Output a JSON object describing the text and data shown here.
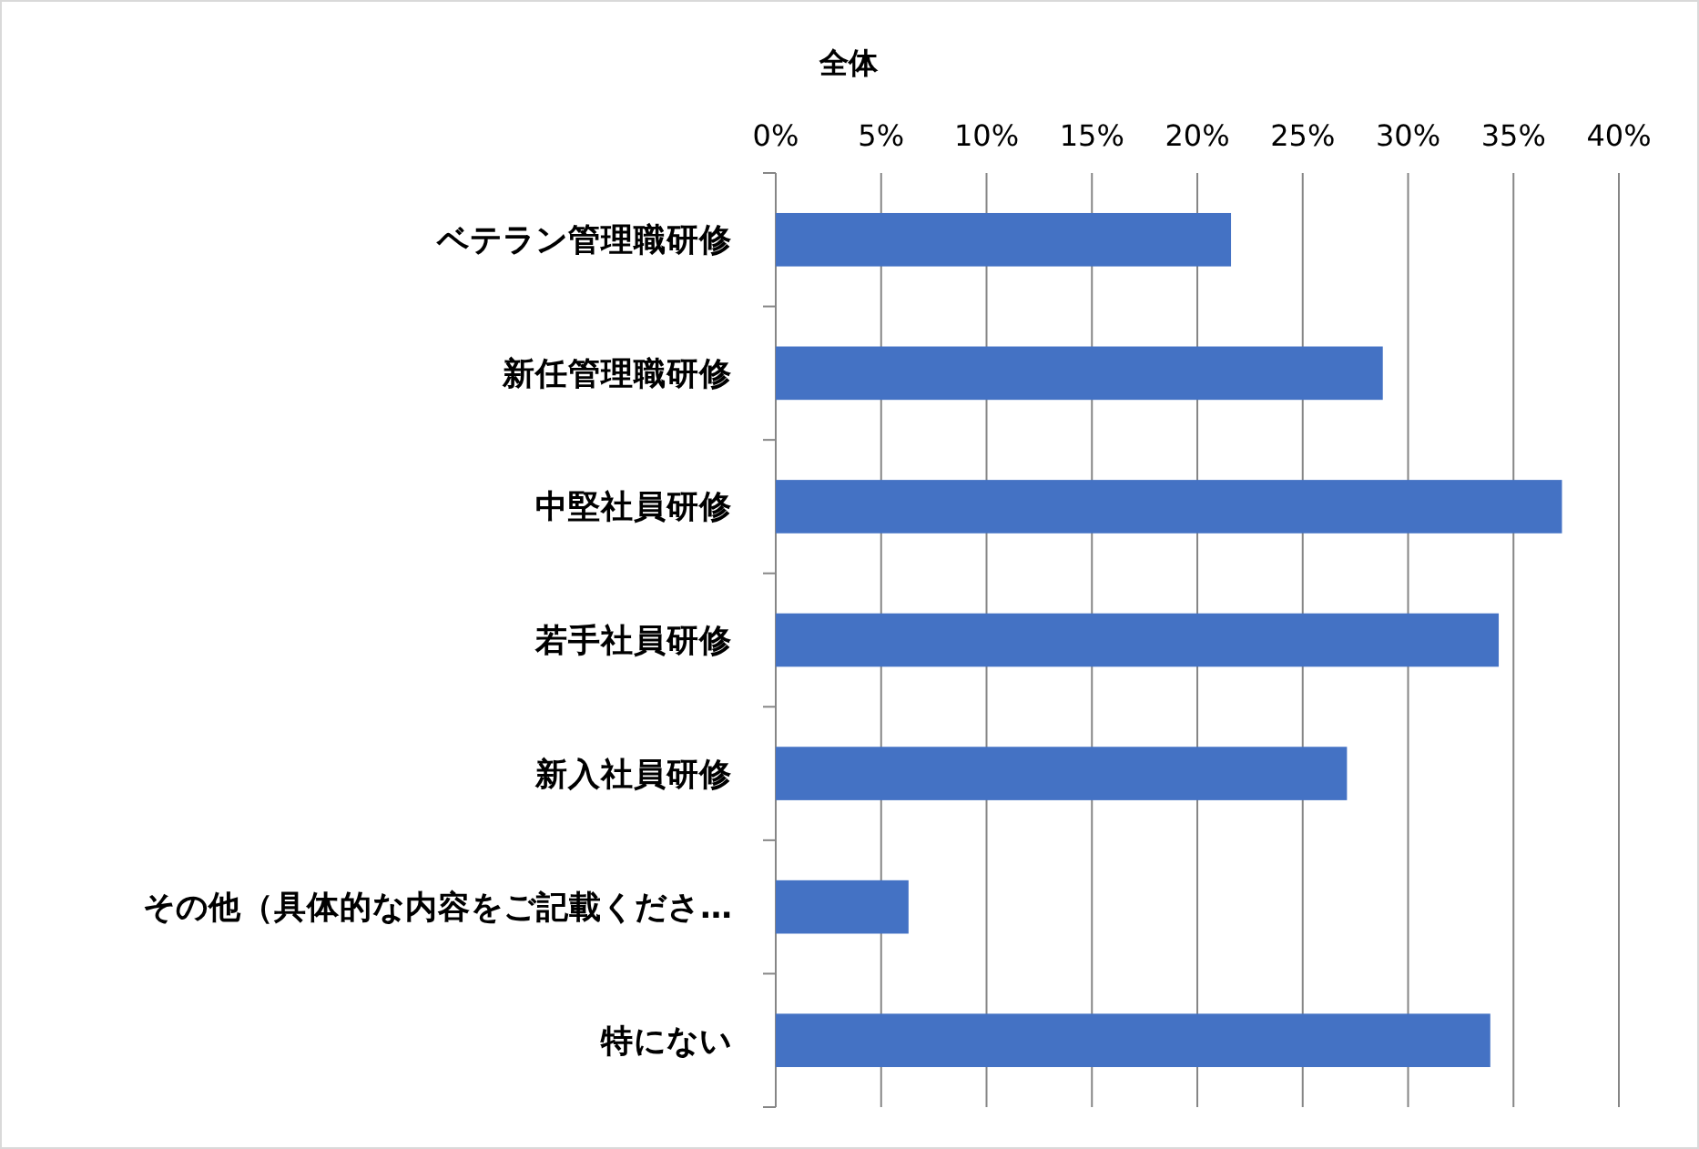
{
  "chart_data": {
    "type": "bar",
    "orientation": "horizontal",
    "title": "全体",
    "categories": [
      "ベテラン管理職研修",
      "新任管理職研修",
      "中堅社員研修",
      "若手社員研修",
      "新入社員研修",
      "その他（具体的な内容をご記載くださ…",
      "特にない"
    ],
    "values": [
      21.6,
      28.8,
      37.3,
      34.3,
      27.1,
      6.3,
      33.9
    ],
    "color": "#4472c4",
    "xlim": [
      0,
      40
    ],
    "xticks": [
      {
        "value": 0,
        "label": "0%"
      },
      {
        "value": 5,
        "label": "5%"
      },
      {
        "value": 10,
        "label": "10%"
      },
      {
        "value": 15,
        "label": "15%"
      },
      {
        "value": 20,
        "label": "20%"
      },
      {
        "value": 25,
        "label": "25%"
      },
      {
        "value": 30,
        "label": "30%"
      },
      {
        "value": 35,
        "label": "35%"
      },
      {
        "value": 40,
        "label": "40%"
      }
    ],
    "grid": "x"
  }
}
